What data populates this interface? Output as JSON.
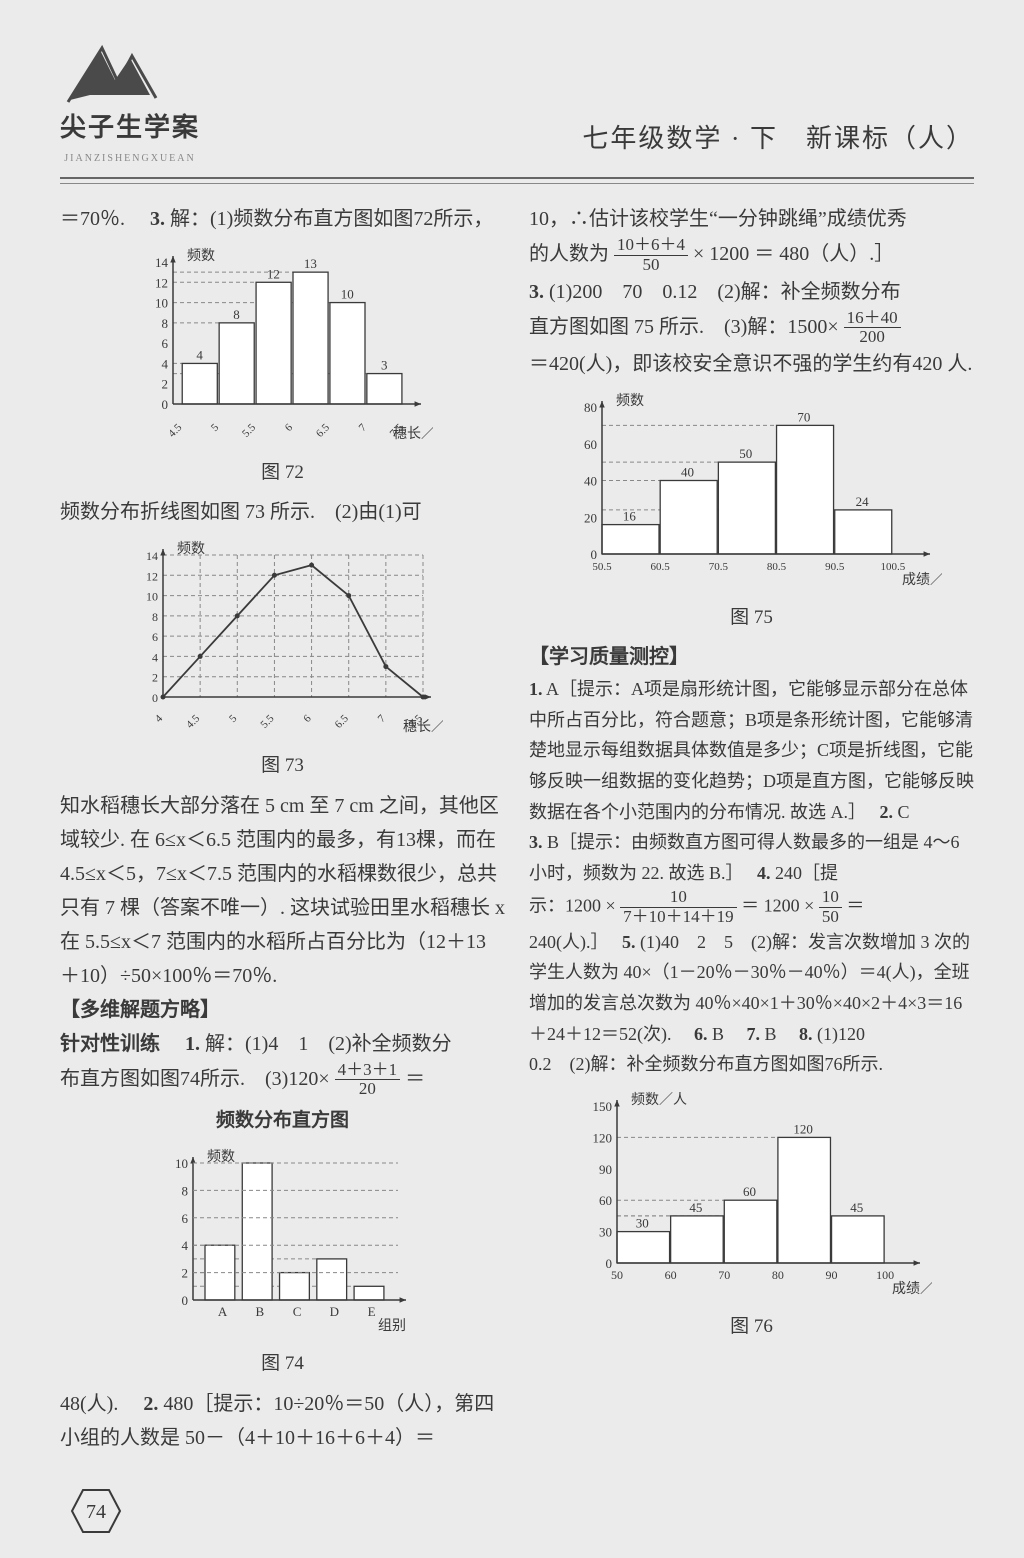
{
  "logo": {
    "name": "尖子生学案",
    "pinyin": "JIANZISHENGXUEAN"
  },
  "subject": "七年级数学 · 下　新课标（人）",
  "page_number": "74",
  "left": {
    "line1_pre": "＝70％.　",
    "line1_q3": "3.",
    "line1_rest": "解：(1)频数分布直方图如图72所示，",
    "fig72": {
      "caption": "图 72",
      "ylabel": "频数",
      "xlabel": "穗长／cm",
      "xticks": [
        "4.5",
        "5",
        "5.5",
        "6",
        "6.5",
        "7",
        "7.5"
      ],
      "yticks": [
        0,
        2,
        4,
        6,
        8,
        10,
        12,
        14
      ],
      "bars": [
        4,
        8,
        12,
        13,
        10,
        3
      ],
      "bar_color": "#ffffff",
      "bar_border": "#3a3a3a",
      "grid_color": "#888888",
      "background": "#ebebeb"
    },
    "after72": "频数分布折线图如图 73 所示.　(2)由(1)可",
    "fig73": {
      "caption": "图 73",
      "ylabel": "频数",
      "xlabel": "穗长／cm",
      "xticks": [
        "4",
        "4.5",
        "5",
        "5.5",
        "6",
        "6.5",
        "7",
        "7.5",
        "8"
      ],
      "yticks": [
        0,
        2,
        4,
        6,
        8,
        10,
        12,
        14
      ],
      "points_y": [
        0,
        4,
        8,
        12,
        13,
        10,
        3,
        0
      ],
      "line_color": "#3a3a3a",
      "grid_color": "#888888",
      "background": "#ebebeb"
    },
    "para_after73": "知水稻穗长大部分落在 5 cm 至 7 cm 之间，其他区域较少. 在 6≤x＜6.5 范围内的最多，有13棵，而在 4.5≤x＜5，7≤x＜7.5 范围内的水稻棵数很少，总共只有 7 棵（答案不唯一）. 这块试验田里水稻穗长 x 在 5.5≤x＜7 范围内的水稻所占百分比为（12＋13＋10）÷50×100％＝70％.",
    "head_multi": "【多维解题方略】",
    "multi_line1a": "针对性训练　",
    "multi_line1_q1": "1.",
    "multi_line1b": "解：(1)4　1　(2)补全频数分",
    "multi_line2a": "布直方图如图74所示.　(3)120×",
    "multi_frac_num": "4＋3＋1",
    "multi_frac_den": "20",
    "multi_line2b": "＝",
    "fig74_title": "频数分布直方图",
    "fig74": {
      "caption": "图 74",
      "ylabel": "频数",
      "xlabel": "组别",
      "xticks": [
        "A",
        "B",
        "C",
        "D",
        "E"
      ],
      "yticks": [
        0,
        2,
        4,
        6,
        8,
        10
      ],
      "bars": [
        4,
        10,
        2,
        3,
        1
      ],
      "bar_color": "#ffffff",
      "bar_border": "#3a3a3a",
      "grid_color": "#888888",
      "background": "#ebebeb"
    },
    "after74a": "48(人).　",
    "after74_q2": "2.",
    "after74b": "480［提示：10÷20％＝50（人），第四小组的人数是 50－（4＋10＋16＋6＋4）＝"
  },
  "right": {
    "top1a": "10，∴估计该校学生“一分钟跳绳”成绩优秀",
    "top1b_pre": "的人数为 ",
    "top1_frac_num": "10＋6＋4",
    "top1_frac_den": "50",
    "top1b_post": " × 1200 ＝ 480（人）.］",
    "line3_q3": "3.",
    "line3a": "(1)200　70　0.12　(2)解：补全频数分布",
    "line3b_pre": "直方图如图 75 所示.　(3)解：1500×",
    "line3_frac_num": "16＋40",
    "line3_frac_den": "200",
    "line3c": "＝420(人)，即该校安全意识不强的学生约有420 人.",
    "fig75": {
      "caption": "图 75",
      "ylabel": "频数",
      "xlabel": "成绩／分",
      "xticks": [
        "50.5",
        "60.5",
        "70.5",
        "80.5",
        "90.5",
        "100.5"
      ],
      "yticks": [
        0,
        20,
        40,
        60,
        80
      ],
      "bars": [
        16,
        40,
        50,
        70,
        24
      ],
      "bar_color": "#ffffff",
      "bar_border": "#3a3a3a",
      "grid_color": "#888888",
      "background": "#ebebeb"
    },
    "head_quality": "【学习质量测控】",
    "q1_num": "1.",
    "q1": "A［提示：A项是扇形统计图，它能够显示部分在总体中所占百分比，符合题意；B项是条形统计图，它能够清楚地显示每组数据具体数值是多少；C项是折线图，它能够反映一组数据的变化趋势；D项是直方图，它能够反映数据在各个小范围内的分布情况. 故选 A.］　",
    "q2_num": "2.",
    "q2": "C",
    "q3_num": "3.",
    "q3a": "B［提示：由频数直方图可得人数最多的一组是 4～6 小时，频数为 22. 故选 B.］　",
    "q4_num": "4.",
    "q4a": "240［提",
    "q4b_pre": "示：1200 × ",
    "q4_frac1_num": "10",
    "q4_frac1_den": "7＋10＋14＋19",
    "q4b_mid": " ＝ 1200 × ",
    "q4_frac2_num": "10",
    "q4_frac2_den": "50",
    "q4b_post": " ＝",
    "q4c": "240(人).］　",
    "q5_num": "5.",
    "q5": "(1)40　2　5　(2)解：发言次数增加 3 次的学生人数为 40×（1－20％－30％－40％）＝4(人)，全班增加的发言总次数为 40％×40×1＋30％×40×2＋4×3＝16＋24＋12＝52(次).　",
    "q6_num": "6.",
    "q6": "B　",
    "q7_num": "7.",
    "q7": "B　",
    "q8_num": "8.",
    "q8a": "(1)120",
    "q8b": "0.2　(2)解：补全频数分布直方图如图76所示.",
    "fig76": {
      "caption": "图 76",
      "ylabel": "频数／人",
      "xlabel": "成绩／分",
      "xticks": [
        "50",
        "60",
        "70",
        "80",
        "90",
        "100"
      ],
      "yticks": [
        0,
        30,
        60,
        90,
        120,
        150
      ],
      "bars": [
        30,
        45,
        60,
        120,
        45
      ],
      "bar_color": "#ffffff",
      "bar_border": "#3a3a3a",
      "grid_color": "#888888",
      "background": "#ebebeb"
    }
  }
}
